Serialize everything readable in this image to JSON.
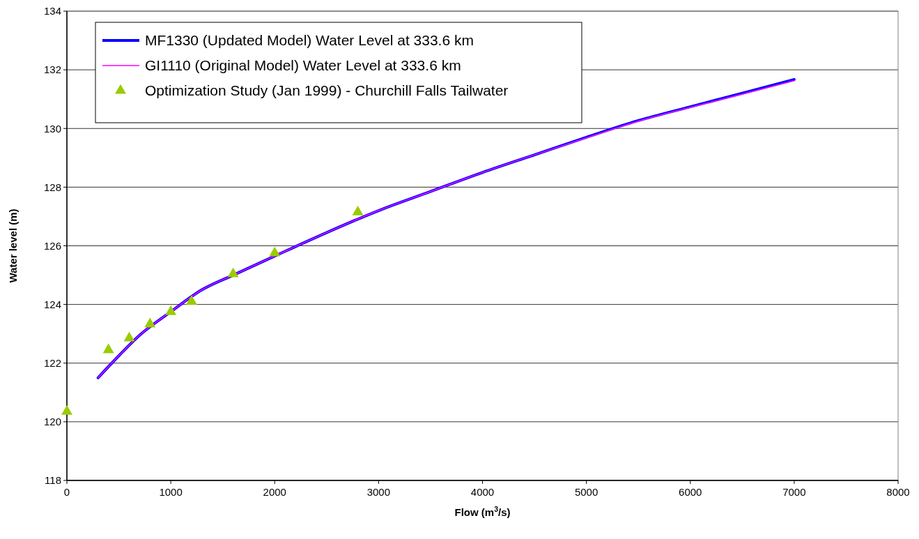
{
  "chart_data": {
    "type": "line",
    "xlabel": "Flow (m$^{3}$/s)",
    "ylabel": "Water level (m)",
    "xlim": [
      0,
      8000
    ],
    "xticks": [
      0,
      1000,
      2000,
      3000,
      4000,
      5000,
      6000,
      7000,
      8000
    ],
    "ylim": [
      118,
      134
    ],
    "yticks": [
      118,
      120,
      122,
      124,
      126,
      128,
      130,
      132,
      134
    ],
    "grid": "y",
    "legend": "top left",
    "marker": "none",
    "line_style": "solid",
    "series": [
      {
        "name": "MF1330 (Updated Model) Water Level at 333.6 km",
        "color": "#0000ff",
        "x": [
          300,
          500,
          700,
          1000,
          1300,
          1600,
          2000,
          2500,
          3000,
          3500,
          4000,
          4500,
          5000,
          5500,
          6000,
          6500,
          7000
        ],
        "values": [
          121.5,
          122.25,
          122.95,
          123.75,
          124.5,
          125.0,
          125.65,
          126.45,
          127.2,
          127.85,
          128.5,
          129.1,
          129.7,
          130.27,
          130.74,
          131.2,
          131.67
        ]
      },
      {
        "name": "GI1110 (Original Model) Water Level at 333.6 km",
        "color": "#ff00ff",
        "x": [
          300,
          500,
          700,
          1000,
          1300,
          1600,
          2000,
          2500,
          3000,
          3500,
          4000,
          4500,
          5000,
          5500,
          6000,
          6500,
          7000
        ],
        "values": [
          121.5,
          122.25,
          122.95,
          123.75,
          124.5,
          125.0,
          125.65,
          126.45,
          127.2,
          127.85,
          128.5,
          129.1,
          129.68,
          130.25,
          130.72,
          131.17,
          131.63
        ]
      },
      {
        "name": "Optimization Study (Jan 1999) - Churchill Falls Tailwater",
        "type": "scatter",
        "marker": "triangle",
        "color": "#99cc00",
        "x": [
          0,
          400,
          600,
          800,
          1000,
          1200,
          1600,
          2000,
          2800
        ],
        "values": [
          120.35,
          122.45,
          122.85,
          123.33,
          123.75,
          124.1,
          125.04,
          125.75,
          127.15
        ]
      }
    ]
  }
}
